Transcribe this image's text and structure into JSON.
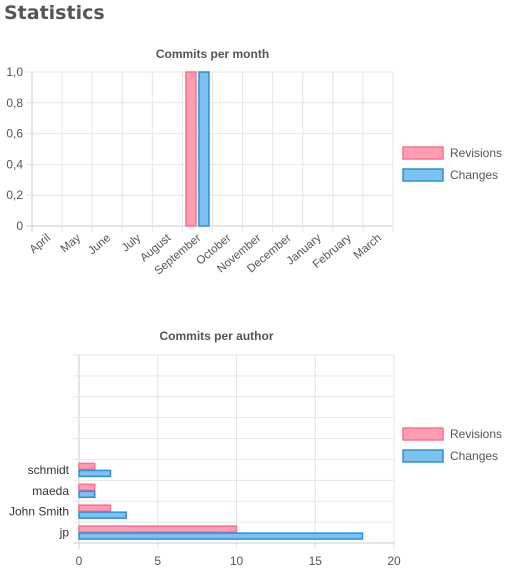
{
  "page": {
    "title": "Statistics"
  },
  "colors": {
    "revisions_fill": "#ff9db3",
    "revisions_stroke": "#ff6f8f",
    "changes_fill": "#7cc1f0",
    "changes_stroke": "#2f8fd6",
    "grid": "#e6e6e6",
    "axis": "#cccccc",
    "text": "#555555"
  },
  "chart_data": [
    {
      "type": "bar",
      "title": "Commits per month",
      "categories": [
        "April",
        "May",
        "June",
        "July",
        "August",
        "September",
        "October",
        "November",
        "December",
        "January",
        "February",
        "March"
      ],
      "series": [
        {
          "name": "Revisions",
          "values": [
            0,
            0,
            0,
            0,
            0,
            1,
            0,
            0,
            0,
            0,
            0,
            0
          ]
        },
        {
          "name": "Changes",
          "values": [
            0,
            0,
            0,
            0,
            0,
            1,
            0,
            0,
            0,
            0,
            0,
            0
          ]
        }
      ],
      "ylim": [
        0,
        1
      ],
      "yticks": [
        "0",
        "0,2",
        "0,4",
        "0,6",
        "0,8",
        "1,0"
      ],
      "grid": true,
      "legend": "right"
    },
    {
      "type": "bar",
      "orientation": "horizontal",
      "title": "Commits per author",
      "categories": [
        "",
        "",
        "",
        "",
        "",
        "schmidt",
        "maeda",
        "John Smith",
        "jp"
      ],
      "series": [
        {
          "name": "Revisions",
          "values": [
            0,
            0,
            0,
            0,
            0,
            1,
            1,
            2,
            10
          ]
        },
        {
          "name": "Changes",
          "values": [
            0,
            0,
            0,
            0,
            0,
            2,
            1,
            3,
            18
          ]
        }
      ],
      "xlim": [
        0,
        20
      ],
      "xticks": [
        "0",
        "5",
        "10",
        "15",
        "20"
      ],
      "grid": true,
      "legend": "right"
    }
  ]
}
